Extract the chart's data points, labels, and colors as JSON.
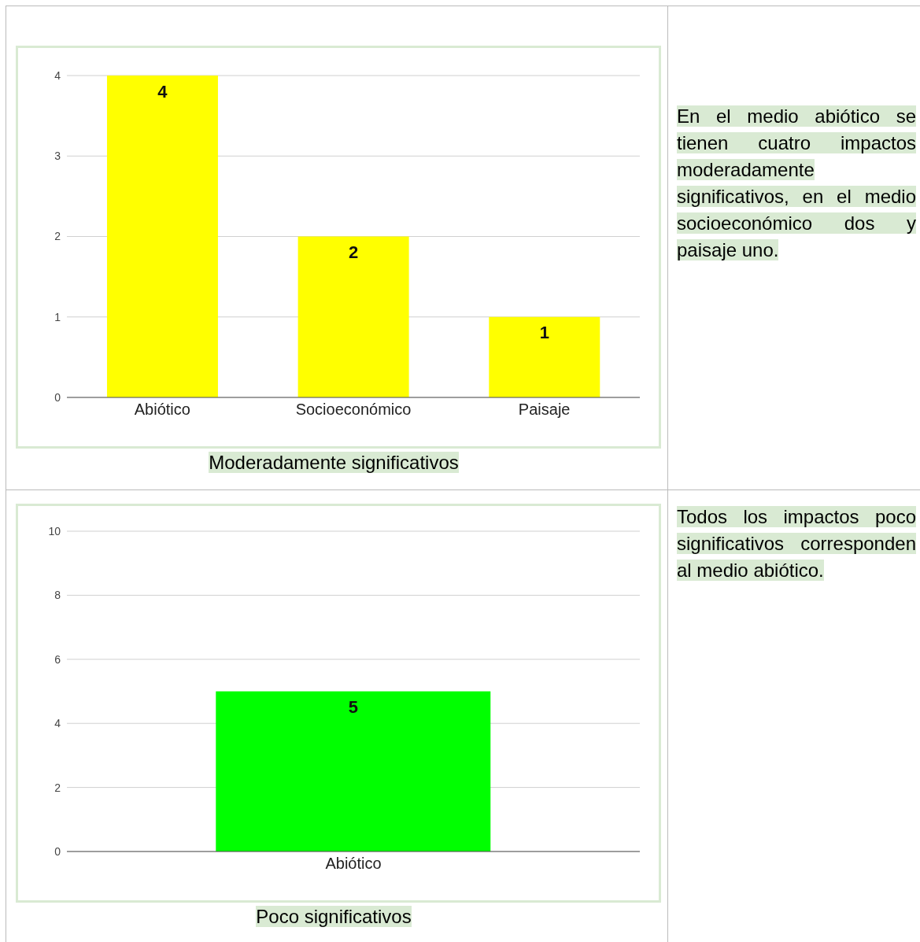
{
  "chart_data": [
    {
      "type": "bar",
      "title": "Moderadamente significativos",
      "categories": [
        "Abiótico",
        "Socioeconómico",
        "Paisaje"
      ],
      "values": [
        4,
        2,
        1
      ],
      "color": "#ffff00",
      "ylim": [
        0,
        4
      ],
      "yticks": [
        0,
        1,
        2,
        3,
        4
      ],
      "grid": "y",
      "data_labels": true
    },
    {
      "type": "other",
      "annotations": [
        "En el medio abiótico se tienen cuatro impactos moderadamente significativos, en el medio socioeconómico dos y paisaje uno."
      ]
    },
    {
      "type": "bar",
      "title": "Poco significativos",
      "categories": [
        "Abiótico"
      ],
      "values": [
        5
      ],
      "color": "#00ff00",
      "ylim": [
        0,
        10
      ],
      "yticks": [
        0,
        2,
        4,
        6,
        8,
        10
      ],
      "grid": "y",
      "data_labels": true
    },
    {
      "type": "other",
      "annotations": [
        "Todos los impactos poco significativos corresponden al medio abiótico."
      ]
    }
  ]
}
